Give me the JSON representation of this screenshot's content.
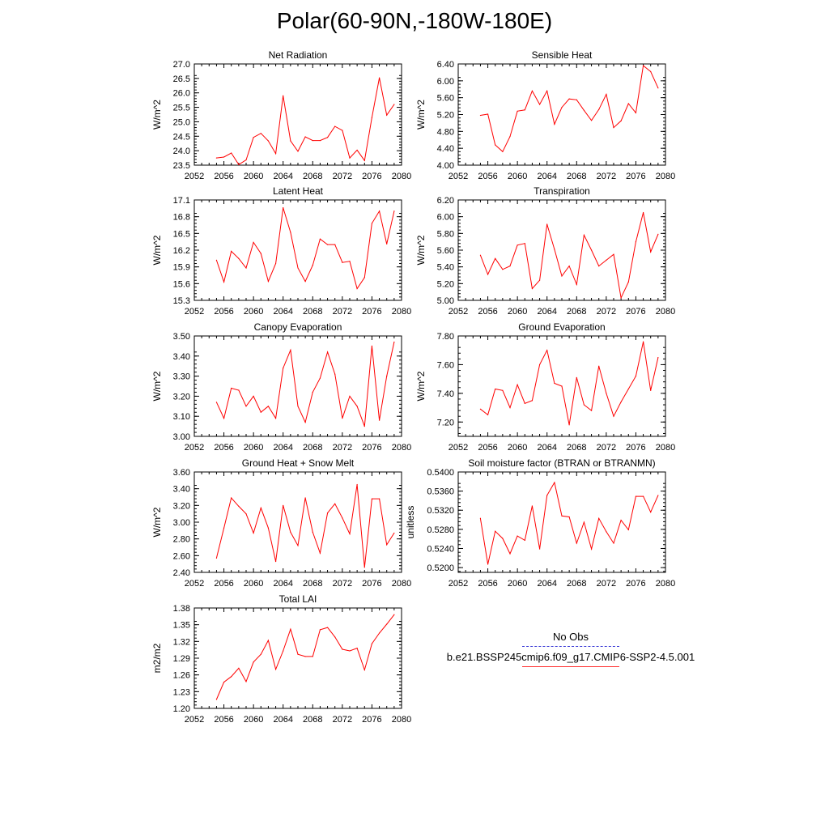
{
  "title": "Polar(60-90N,-180W-180E)",
  "line_color": "#ff0000",
  "legend": {
    "items": [
      {
        "label": "No Obs",
        "style": "dashed",
        "color": "#3b3bd6"
      },
      {
        "label": "b.e21.BSSP245cmip6.f09_g17.CMIP6-SSP2-4.5.001",
        "style": "solid",
        "color": "#ff3030"
      }
    ]
  },
  "chart_data": [
    {
      "type": "line",
      "title": "Net Radiation",
      "ylabel": "W/m^2",
      "xlim": [
        2052,
        2080
      ],
      "xticks": [
        2052,
        2056,
        2060,
        2064,
        2068,
        2072,
        2076,
        2080
      ],
      "ylim": [
        23.5,
        27.0
      ],
      "yticks": [
        "23.5",
        "24.0",
        "24.5",
        "25.0",
        "25.5",
        "26.0",
        "26.5",
        "27.0"
      ],
      "x": [
        2055,
        2056,
        2057,
        2058,
        2059,
        2060,
        2061,
        2062,
        2063,
        2064,
        2065,
        2066,
        2067,
        2068,
        2069,
        2070,
        2071,
        2072,
        2073,
        2074,
        2075,
        2076,
        2077,
        2078,
        2079
      ],
      "values": [
        23.75,
        23.78,
        23.92,
        23.52,
        23.68,
        24.46,
        24.6,
        24.34,
        23.9,
        25.9,
        24.34,
        23.98,
        24.48,
        24.35,
        24.35,
        24.46,
        24.84,
        24.7,
        23.75,
        24.02,
        23.66,
        25.15,
        26.52,
        25.23,
        25.6
      ]
    },
    {
      "type": "line",
      "title": "Sensible Heat",
      "ylabel": "W/m^2",
      "xlim": [
        2052,
        2080
      ],
      "xticks": [
        2052,
        2056,
        2060,
        2064,
        2068,
        2072,
        2076,
        2080
      ],
      "ylim": [
        4.0,
        6.4
      ],
      "yticks": [
        "4.00",
        "4.40",
        "4.80",
        "5.20",
        "5.60",
        "6.00",
        "6.40"
      ],
      "x": [
        2055,
        2056,
        2057,
        2058,
        2059,
        2060,
        2061,
        2062,
        2063,
        2064,
        2065,
        2066,
        2067,
        2068,
        2069,
        2070,
        2071,
        2072,
        2073,
        2074,
        2075,
        2076,
        2077,
        2078,
        2079
      ],
      "values": [
        5.18,
        5.21,
        4.48,
        4.32,
        4.68,
        5.28,
        5.31,
        5.76,
        5.44,
        5.76,
        4.97,
        5.37,
        5.57,
        5.55,
        5.3,
        5.06,
        5.32,
        5.68,
        4.89,
        5.05,
        5.46,
        5.24,
        6.36,
        6.22,
        5.83
      ]
    },
    {
      "type": "line",
      "title": "Latent Heat",
      "ylabel": "W/m^2",
      "xlim": [
        2052,
        2080
      ],
      "xticks": [
        2052,
        2056,
        2060,
        2064,
        2068,
        2072,
        2076,
        2080
      ],
      "ylim": [
        15.3,
        17.1
      ],
      "yticks": [
        "15.3",
        "15.6",
        "15.9",
        "16.2",
        "16.5",
        "16.8",
        "17.1"
      ],
      "x": [
        2055,
        2056,
        2057,
        2058,
        2059,
        2060,
        2061,
        2062,
        2063,
        2064,
        2065,
        2066,
        2067,
        2068,
        2069,
        2070,
        2071,
        2072,
        2073,
        2074,
        2075,
        2076,
        2077,
        2078,
        2079
      ],
      "values": [
        16.02,
        15.63,
        16.18,
        16.05,
        15.88,
        16.34,
        16.14,
        15.64,
        15.96,
        16.96,
        16.52,
        15.88,
        15.64,
        15.93,
        16.4,
        16.3,
        16.3,
        15.98,
        16.0,
        15.51,
        15.71,
        16.68,
        16.9,
        16.31,
        16.9
      ]
    },
    {
      "type": "line",
      "title": "Transpiration",
      "ylabel": "W/m^2",
      "xlim": [
        2052,
        2080
      ],
      "xticks": [
        2052,
        2056,
        2060,
        2064,
        2068,
        2072,
        2076,
        2080
      ],
      "ylim": [
        5.0,
        6.2
      ],
      "yticks": [
        "5.00",
        "5.20",
        "5.40",
        "5.60",
        "5.80",
        "6.00",
        "6.20"
      ],
      "x": [
        2055,
        2056,
        2057,
        2058,
        2059,
        2060,
        2061,
        2062,
        2063,
        2064,
        2065,
        2066,
        2067,
        2068,
        2069,
        2070,
        2071,
        2072,
        2073,
        2074,
        2075,
        2076,
        2077,
        2078,
        2079
      ],
      "values": [
        5.54,
        5.31,
        5.5,
        5.37,
        5.41,
        5.66,
        5.68,
        5.14,
        5.24,
        5.91,
        5.61,
        5.29,
        5.41,
        5.19,
        5.78,
        5.6,
        5.41,
        5.48,
        5.55,
        5.03,
        5.22,
        5.7,
        6.05,
        5.58,
        5.79
      ]
    },
    {
      "type": "line",
      "title": "Canopy Evaporation",
      "ylabel": "W/m^2",
      "xlim": [
        2052,
        2080
      ],
      "xticks": [
        2052,
        2056,
        2060,
        2064,
        2068,
        2072,
        2076,
        2080
      ],
      "ylim": [
        3.0,
        3.5
      ],
      "yticks": [
        "3.00",
        "3.10",
        "3.20",
        "3.30",
        "3.40",
        "3.50"
      ],
      "x": [
        2055,
        2056,
        2057,
        2058,
        2059,
        2060,
        2061,
        2062,
        2063,
        2064,
        2065,
        2066,
        2067,
        2068,
        2069,
        2070,
        2071,
        2072,
        2073,
        2074,
        2075,
        2076,
        2077,
        2078,
        2079
      ],
      "values": [
        3.17,
        3.09,
        3.24,
        3.23,
        3.15,
        3.2,
        3.12,
        3.15,
        3.09,
        3.34,
        3.43,
        3.15,
        3.07,
        3.22,
        3.29,
        3.42,
        3.31,
        3.09,
        3.2,
        3.15,
        3.05,
        3.45,
        3.08,
        3.3,
        3.47
      ]
    },
    {
      "type": "line",
      "title": "Ground Evaporation",
      "ylabel": "W/m^2",
      "xlim": [
        2052,
        2080
      ],
      "xticks": [
        2052,
        2056,
        2060,
        2064,
        2068,
        2072,
        2076,
        2080
      ],
      "ylim": [
        7.1,
        7.8
      ],
      "yticks": [
        "7.20",
        "7.40",
        "7.60",
        "7.80"
      ],
      "ytick_values": [
        7.2,
        7.4,
        7.6,
        7.8
      ],
      "x": [
        2055,
        2056,
        2057,
        2058,
        2059,
        2060,
        2061,
        2062,
        2063,
        2064,
        2065,
        2066,
        2067,
        2068,
        2069,
        2070,
        2071,
        2072,
        2073,
        2074,
        2075,
        2076,
        2077,
        2078,
        2079
      ],
      "values": [
        7.29,
        7.25,
        7.43,
        7.42,
        7.3,
        7.46,
        7.33,
        7.35,
        7.6,
        7.7,
        7.47,
        7.45,
        7.18,
        7.51,
        7.32,
        7.28,
        7.59,
        7.4,
        7.24,
        7.34,
        7.43,
        7.52,
        7.76,
        7.42,
        7.65
      ]
    },
    {
      "type": "line",
      "title": "Ground Heat + Snow Melt",
      "ylabel": "W/m^2",
      "xlim": [
        2052,
        2080
      ],
      "xticks": [
        2052,
        2056,
        2060,
        2064,
        2068,
        2072,
        2076,
        2080
      ],
      "ylim": [
        2.4,
        3.6
      ],
      "yticks": [
        "2.40",
        "2.60",
        "2.80",
        "3.00",
        "3.20",
        "3.40",
        "3.60"
      ],
      "x": [
        2055,
        2056,
        2057,
        2058,
        2059,
        2060,
        2061,
        2062,
        2063,
        2064,
        2065,
        2066,
        2067,
        2068,
        2069,
        2070,
        2071,
        2072,
        2073,
        2074,
        2075,
        2076,
        2077,
        2078,
        2079
      ],
      "values": [
        2.57,
        2.93,
        3.29,
        3.19,
        3.1,
        2.87,
        3.17,
        2.93,
        2.53,
        3.2,
        2.88,
        2.72,
        3.29,
        2.88,
        2.63,
        3.11,
        3.22,
        3.05,
        2.86,
        3.45,
        2.46,
        3.28,
        3.28,
        2.73,
        2.87
      ]
    },
    {
      "type": "line",
      "title": "Soil moisture factor (BTRAN or BTRANMN)",
      "ylabel": "unitless",
      "xlim": [
        2052,
        2080
      ],
      "xticks": [
        2052,
        2056,
        2060,
        2064,
        2068,
        2072,
        2076,
        2080
      ],
      "ylim": [
        0.519,
        0.54
      ],
      "yticks": [
        "0.5200",
        "0.5240",
        "0.5280",
        "0.5320",
        "0.5360",
        "0.5400"
      ],
      "ytick_values": [
        0.52,
        0.524,
        0.528,
        0.532,
        0.536,
        0.54
      ],
      "x": [
        2055,
        2056,
        2057,
        2058,
        2059,
        2060,
        2061,
        2062,
        2063,
        2064,
        2065,
        2066,
        2067,
        2068,
        2069,
        2070,
        2071,
        2072,
        2073,
        2074,
        2075,
        2076,
        2077,
        2078,
        2079
      ],
      "values": [
        0.5303,
        0.5207,
        0.5276,
        0.5261,
        0.5229,
        0.5266,
        0.5257,
        0.5329,
        0.5239,
        0.5351,
        0.5378,
        0.5308,
        0.5306,
        0.5251,
        0.5295,
        0.5239,
        0.5303,
        0.5275,
        0.5251,
        0.5299,
        0.5279,
        0.5349,
        0.5349,
        0.5316,
        0.5351
      ]
    },
    {
      "type": "line",
      "title": "Total LAI",
      "ylabel": "m2/m2",
      "xlim": [
        2052,
        2080
      ],
      "xticks": [
        2052,
        2056,
        2060,
        2064,
        2068,
        2072,
        2076,
        2080
      ],
      "ylim": [
        1.2,
        1.38
      ],
      "yticks": [
        "1.20",
        "1.23",
        "1.26",
        "1.29",
        "1.32",
        "1.35",
        "1.38"
      ],
      "x": [
        2055,
        2056,
        2057,
        2058,
        2059,
        2060,
        2061,
        2062,
        2063,
        2064,
        2065,
        2066,
        2067,
        2068,
        2069,
        2070,
        2071,
        2072,
        2073,
        2074,
        2075,
        2076,
        2077,
        2078,
        2079
      ],
      "values": [
        1.216,
        1.247,
        1.257,
        1.272,
        1.248,
        1.283,
        1.297,
        1.322,
        1.27,
        1.303,
        1.342,
        1.297,
        1.293,
        1.293,
        1.341,
        1.345,
        1.328,
        1.306,
        1.303,
        1.308,
        1.269,
        1.316,
        1.335,
        1.351,
        1.368
      ]
    }
  ]
}
